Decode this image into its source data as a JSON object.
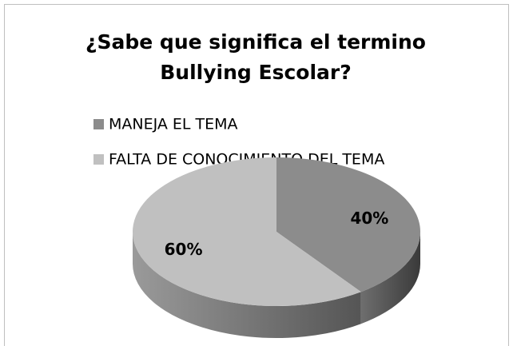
{
  "chart_data": {
    "type": "pie",
    "title": "¿Sabe que significa el termino Bullying Escolar?",
    "categories": [
      "MANEJA EL TEMA",
      "FALTA DE CONOCIMIENTO DEL TEMA"
    ],
    "values": [
      40,
      60
    ],
    "value_labels": [
      "40%",
      "60%"
    ],
    "colors": [
      "#8c8c8c",
      "#c0c0c0"
    ],
    "legend": "top-left"
  }
}
